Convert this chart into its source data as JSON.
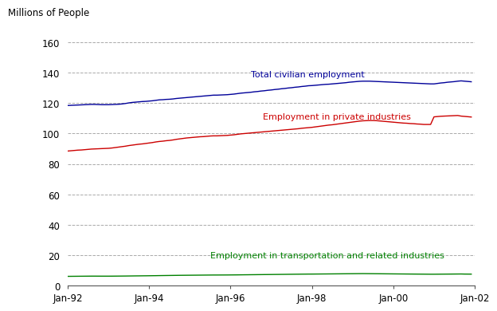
{
  "ylabel": "Millions of People",
  "ylim": [
    0,
    160
  ],
  "yticks": [
    0,
    20,
    40,
    60,
    80,
    100,
    120,
    140,
    160
  ],
  "xtick_labels": [
    "Jan-92",
    "Jan-94",
    "Jan-96",
    "Jan-98",
    "Jan-00",
    "Jan-02"
  ],
  "background_color": "#ffffff",
  "grid_color": "#aaaaaa",
  "line1_color": "#000099",
  "line2_color": "#cc0000",
  "line3_color": "#008000",
  "line1_label": "Total civilian employment",
  "line2_label": "Employment in private industries",
  "line3_label": "Employment in transportation and related industries",
  "total_civilian": [
    118.5,
    118.6,
    118.7,
    118.8,
    118.9,
    119.0,
    119.1,
    119.2,
    119.2,
    119.1,
    119.0,
    119.0,
    119.0,
    119.1,
    119.2,
    119.3,
    119.5,
    119.8,
    120.2,
    120.5,
    120.7,
    120.9,
    121.1,
    121.2,
    121.4,
    121.6,
    121.9,
    122.2,
    122.3,
    122.5,
    122.6,
    122.8,
    123.1,
    123.3,
    123.5,
    123.7,
    123.9,
    124.1,
    124.3,
    124.5,
    124.7,
    124.9,
    125.1,
    125.3,
    125.3,
    125.4,
    125.5,
    125.6,
    125.8,
    126.0,
    126.3,
    126.6,
    126.8,
    127.0,
    127.2,
    127.5,
    127.7,
    128.0,
    128.2,
    128.5,
    128.7,
    129.0,
    129.2,
    129.5,
    129.7,
    130.0,
    130.2,
    130.5,
    130.7,
    131.0,
    131.2,
    131.5,
    131.6,
    131.8,
    132.0,
    132.2,
    132.4,
    132.5,
    132.7,
    132.9,
    133.1,
    133.3,
    133.5,
    133.8,
    134.0,
    134.2,
    134.4,
    134.5,
    134.5,
    134.5,
    134.4,
    134.3,
    134.2,
    134.1,
    134.0,
    133.9,
    133.8,
    133.7,
    133.6,
    133.5,
    133.4,
    133.3,
    133.2,
    133.1,
    133.0,
    132.9,
    132.8,
    132.7,
    132.7,
    133.0,
    133.3,
    133.5,
    133.8,
    134.0,
    134.2,
    134.5,
    134.7,
    134.5,
    134.3,
    134.1
  ],
  "private_industries": [
    88.5,
    88.7,
    88.9,
    89.1,
    89.2,
    89.4,
    89.6,
    89.8,
    89.9,
    90.0,
    90.1,
    90.2,
    90.3,
    90.5,
    90.8,
    91.1,
    91.4,
    91.7,
    92.1,
    92.4,
    92.7,
    93.0,
    93.2,
    93.5,
    93.8,
    94.1,
    94.5,
    94.8,
    95.0,
    95.3,
    95.5,
    95.8,
    96.2,
    96.5,
    96.8,
    97.1,
    97.3,
    97.5,
    97.7,
    97.9,
    98.0,
    98.2,
    98.4,
    98.5,
    98.5,
    98.6,
    98.7,
    98.8,
    99.0,
    99.2,
    99.5,
    99.8,
    100.0,
    100.2,
    100.4,
    100.6,
    100.8,
    101.0,
    101.2,
    101.4,
    101.6,
    101.8,
    102.0,
    102.2,
    102.4,
    102.6,
    102.8,
    103.0,
    103.2,
    103.5,
    103.7,
    103.9,
    104.1,
    104.4,
    104.7,
    105.0,
    105.3,
    105.6,
    105.8,
    106.1,
    106.4,
    106.7,
    107.0,
    107.3,
    107.6,
    107.9,
    108.2,
    108.4,
    108.5,
    108.6,
    108.6,
    108.5,
    108.3,
    108.1,
    107.9,
    107.7,
    107.5,
    107.3,
    107.1,
    106.9,
    106.8,
    106.6,
    106.5,
    106.3,
    106.2,
    106.0,
    106.0,
    106.0,
    111.0,
    111.2,
    111.4,
    111.5,
    111.6,
    111.7,
    111.8,
    111.9,
    111.5,
    111.3,
    111.1,
    110.9
  ],
  "transportation": [
    6.0,
    6.02,
    6.04,
    6.06,
    6.08,
    6.1,
    6.12,
    6.14,
    6.14,
    6.13,
    6.12,
    6.12,
    6.12,
    6.13,
    6.15,
    6.17,
    6.19,
    6.21,
    6.24,
    6.27,
    6.3,
    6.32,
    6.35,
    6.37,
    6.4,
    6.43,
    6.46,
    6.5,
    6.53,
    6.56,
    6.59,
    6.62,
    6.65,
    6.68,
    6.7,
    6.72,
    6.74,
    6.76,
    6.78,
    6.8,
    6.82,
    6.84,
    6.86,
    6.88,
    6.88,
    6.89,
    6.9,
    6.91,
    6.93,
    6.95,
    6.97,
    7.0,
    7.03,
    7.05,
    7.08,
    7.1,
    7.13,
    7.15,
    7.18,
    7.2,
    7.22,
    7.25,
    7.27,
    7.3,
    7.32,
    7.35,
    7.37,
    7.4,
    7.42,
    7.45,
    7.47,
    7.5,
    7.5,
    7.52,
    7.54,
    7.56,
    7.58,
    7.6,
    7.62,
    7.64,
    7.66,
    7.68,
    7.7,
    7.72,
    7.74,
    7.76,
    7.78,
    7.8,
    7.78,
    7.76,
    7.74,
    7.72,
    7.7,
    7.68,
    7.66,
    7.64,
    7.62,
    7.6,
    7.58,
    7.56,
    7.54,
    7.52,
    7.5,
    7.48,
    7.46,
    7.44,
    7.42,
    7.4,
    7.4,
    7.42,
    7.44,
    7.46,
    7.48,
    7.5,
    7.52,
    7.54,
    7.56,
    7.5,
    7.48,
    7.46
  ]
}
